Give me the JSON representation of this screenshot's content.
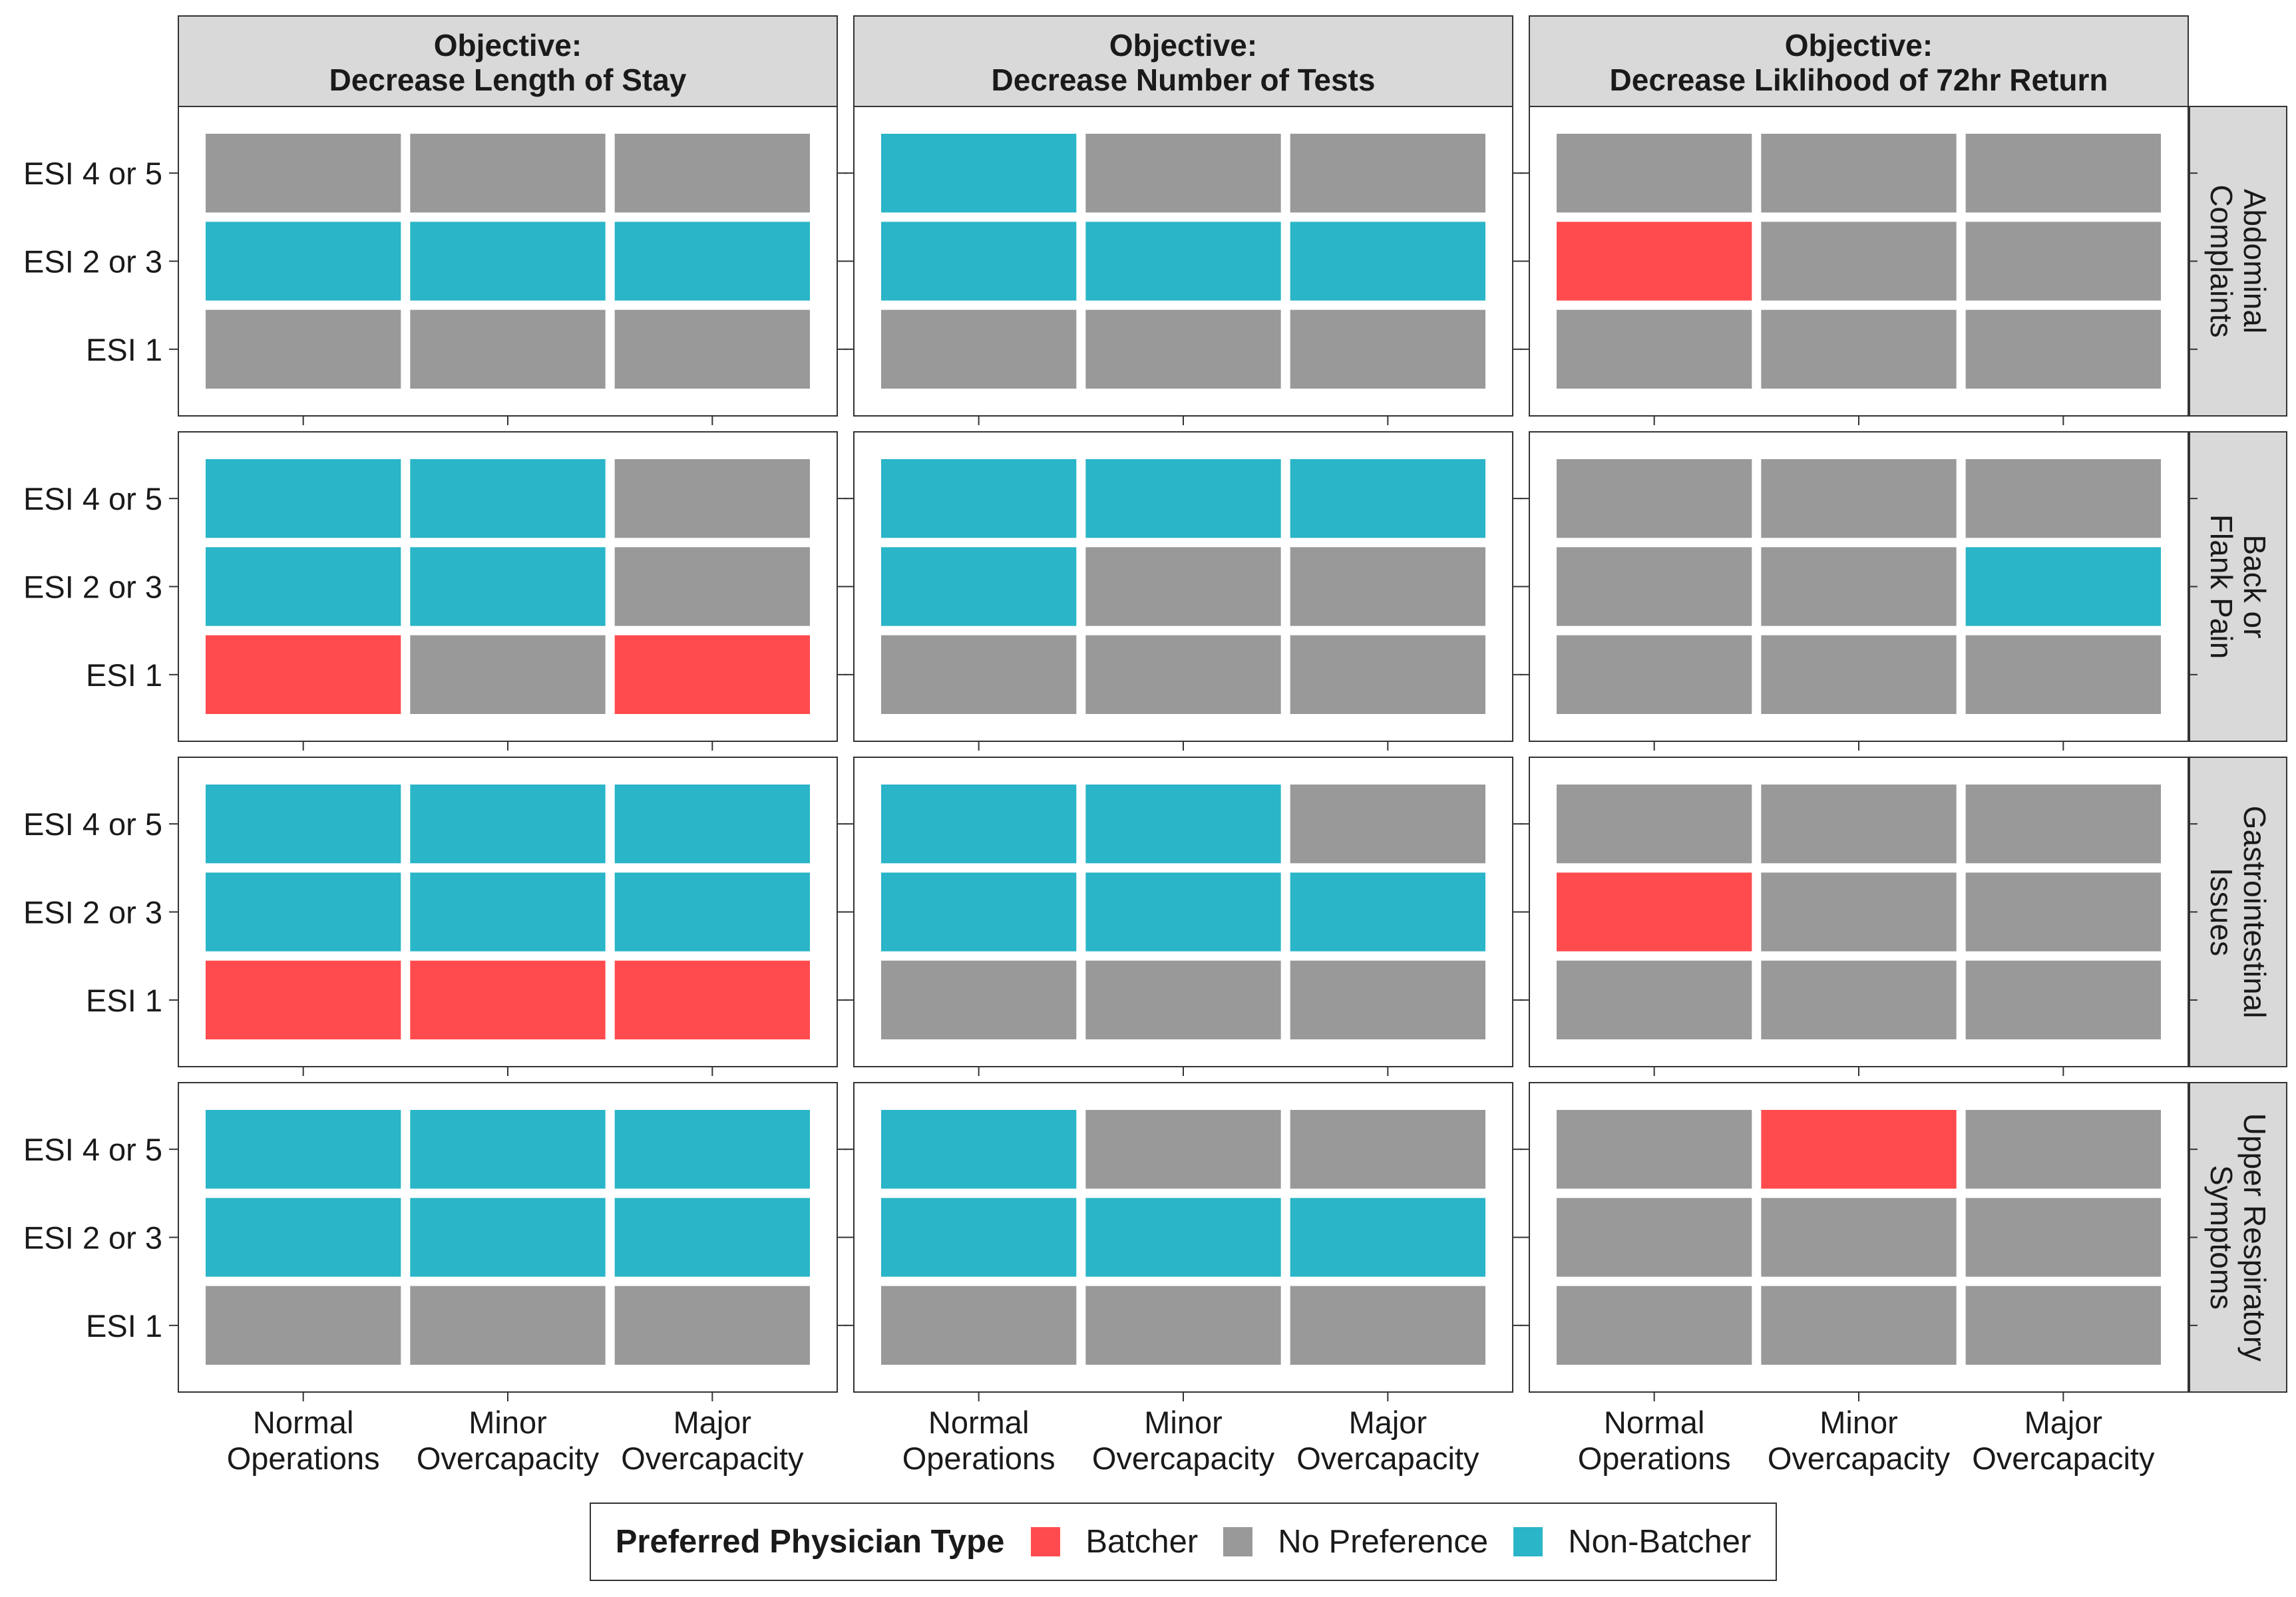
{
  "chart_data": {
    "type": "heatmap",
    "column_facets": [
      [
        "Objective:",
        "Decrease Length of Stay"
      ],
      [
        "Objective:",
        "Decrease Number of Tests"
      ],
      [
        "Objective:",
        "Decrease Liklihood of 72hr Return"
      ]
    ],
    "row_facets": [
      [
        "Abdominal",
        "Complaints"
      ],
      [
        "Back or",
        "Flank Pain"
      ],
      [
        "Gastrointestinal",
        "Issues"
      ],
      [
        "Upper Respiratory",
        "Symptoms"
      ]
    ],
    "x_categories": [
      [
        "Normal",
        "Operations"
      ],
      [
        "Minor",
        "Overcapacity"
      ],
      [
        "Major",
        "Overcapacity"
      ]
    ],
    "y_categories": [
      "ESI 4 or 5",
      "ESI 2 or 3",
      "ESI 1"
    ],
    "legend": {
      "title": "Preferred Physician Type",
      "position": "bottom",
      "items": [
        {
          "key": "B",
          "label": "Batcher",
          "color": "#FF4B4D"
        },
        {
          "key": "N",
          "label": "No Preference",
          "color": "#999999"
        },
        {
          "key": "C",
          "label": "Non-Batcher",
          "color": "#2AB5C8"
        }
      ]
    },
    "grid": false,
    "cells": [
      [
        [
          [
            "N",
            "N",
            "N"
          ],
          [
            "C",
            "C",
            "C"
          ],
          [
            "N",
            "N",
            "N"
          ]
        ],
        [
          [
            "C",
            "N",
            "N"
          ],
          [
            "C",
            "C",
            "C"
          ],
          [
            "N",
            "N",
            "N"
          ]
        ],
        [
          [
            "N",
            "N",
            "N"
          ],
          [
            "B",
            "N",
            "N"
          ],
          [
            "N",
            "N",
            "N"
          ]
        ]
      ],
      [
        [
          [
            "C",
            "C",
            "N"
          ],
          [
            "C",
            "C",
            "N"
          ],
          [
            "B",
            "N",
            "B"
          ]
        ],
        [
          [
            "C",
            "C",
            "C"
          ],
          [
            "C",
            "N",
            "N"
          ],
          [
            "N",
            "N",
            "N"
          ]
        ],
        [
          [
            "N",
            "N",
            "N"
          ],
          [
            "N",
            "N",
            "C"
          ],
          [
            "N",
            "N",
            "N"
          ]
        ]
      ],
      [
        [
          [
            "C",
            "C",
            "C"
          ],
          [
            "C",
            "C",
            "C"
          ],
          [
            "B",
            "B",
            "B"
          ]
        ],
        [
          [
            "C",
            "C",
            "N"
          ],
          [
            "C",
            "C",
            "C"
          ],
          [
            "N",
            "N",
            "N"
          ]
        ],
        [
          [
            "N",
            "N",
            "N"
          ],
          [
            "B",
            "N",
            "N"
          ],
          [
            "N",
            "N",
            "N"
          ]
        ]
      ],
      [
        [
          [
            "C",
            "C",
            "C"
          ],
          [
            "C",
            "C",
            "C"
          ],
          [
            "N",
            "N",
            "N"
          ]
        ],
        [
          [
            "C",
            "N",
            "N"
          ],
          [
            "C",
            "C",
            "C"
          ],
          [
            "N",
            "N",
            "N"
          ]
        ],
        [
          [
            "N",
            "B",
            "N"
          ],
          [
            "N",
            "N",
            "N"
          ],
          [
            "N",
            "N",
            "N"
          ]
        ]
      ]
    ]
  }
}
